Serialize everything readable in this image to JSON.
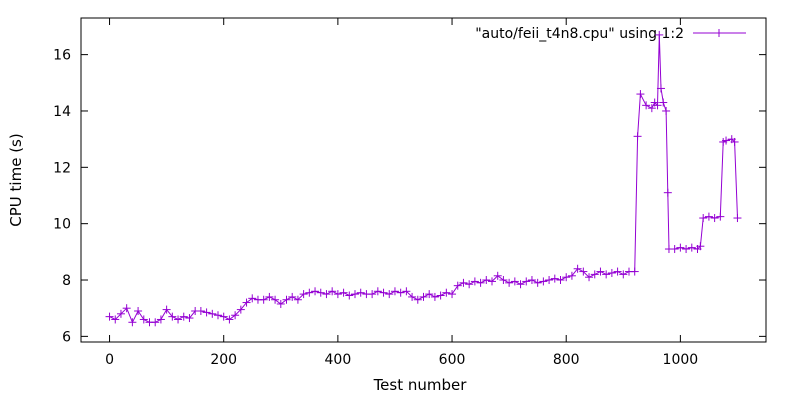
{
  "chart_data": {
    "type": "line",
    "title": "",
    "xlabel": "Test number",
    "ylabel": "CPU time (s)",
    "xlim": [
      -50,
      1150
    ],
    "ylim": [
      5.8,
      17.3
    ],
    "xticks": [
      0,
      200,
      400,
      600,
      800,
      1000
    ],
    "yticks": [
      6,
      8,
      10,
      12,
      14,
      16
    ],
    "grid": false,
    "legend_position": "top-right",
    "line_color": "#9400d3",
    "marker": "plus",
    "series": [
      {
        "name": "\"auto/feii_t4n8.cpu\" using 1:2",
        "points": [
          [
            0,
            6.7
          ],
          [
            10,
            6.6
          ],
          [
            20,
            6.8
          ],
          [
            30,
            7.0
          ],
          [
            40,
            6.5
          ],
          [
            50,
            6.9
          ],
          [
            60,
            6.6
          ],
          [
            70,
            6.5
          ],
          [
            80,
            6.5
          ],
          [
            90,
            6.6
          ],
          [
            100,
            6.95
          ],
          [
            110,
            6.7
          ],
          [
            120,
            6.6
          ],
          [
            130,
            6.7
          ],
          [
            140,
            6.65
          ],
          [
            150,
            6.9
          ],
          [
            160,
            6.9
          ],
          [
            170,
            6.85
          ],
          [
            180,
            6.8
          ],
          [
            190,
            6.75
          ],
          [
            200,
            6.7
          ],
          [
            210,
            6.6
          ],
          [
            220,
            6.75
          ],
          [
            230,
            6.95
          ],
          [
            240,
            7.2
          ],
          [
            250,
            7.35
          ],
          [
            260,
            7.3
          ],
          [
            270,
            7.3
          ],
          [
            280,
            7.4
          ],
          [
            290,
            7.3
          ],
          [
            300,
            7.15
          ],
          [
            310,
            7.3
          ],
          [
            320,
            7.4
          ],
          [
            330,
            7.3
          ],
          [
            340,
            7.5
          ],
          [
            350,
            7.55
          ],
          [
            360,
            7.6
          ],
          [
            370,
            7.55
          ],
          [
            380,
            7.5
          ],
          [
            390,
            7.6
          ],
          [
            400,
            7.5
          ],
          [
            410,
            7.55
          ],
          [
            420,
            7.45
          ],
          [
            430,
            7.5
          ],
          [
            440,
            7.55
          ],
          [
            450,
            7.5
          ],
          [
            460,
            7.5
          ],
          [
            470,
            7.6
          ],
          [
            480,
            7.55
          ],
          [
            490,
            7.5
          ],
          [
            500,
            7.6
          ],
          [
            510,
            7.55
          ],
          [
            520,
            7.6
          ],
          [
            530,
            7.4
          ],
          [
            540,
            7.3
          ],
          [
            550,
            7.4
          ],
          [
            560,
            7.5
          ],
          [
            570,
            7.4
          ],
          [
            580,
            7.45
          ],
          [
            590,
            7.55
          ],
          [
            600,
            7.5
          ],
          [
            610,
            7.8
          ],
          [
            620,
            7.9
          ],
          [
            630,
            7.85
          ],
          [
            640,
            7.95
          ],
          [
            650,
            7.9
          ],
          [
            660,
            8.0
          ],
          [
            670,
            7.95
          ],
          [
            680,
            8.15
          ],
          [
            690,
            8.0
          ],
          [
            700,
            7.9
          ],
          [
            710,
            7.95
          ],
          [
            720,
            7.85
          ],
          [
            730,
            7.95
          ],
          [
            740,
            8.0
          ],
          [
            750,
            7.9
          ],
          [
            760,
            7.95
          ],
          [
            770,
            8.0
          ],
          [
            780,
            8.05
          ],
          [
            790,
            8.0
          ],
          [
            800,
            8.1
          ],
          [
            810,
            8.15
          ],
          [
            820,
            8.4
          ],
          [
            830,
            8.3
          ],
          [
            840,
            8.1
          ],
          [
            850,
            8.2
          ],
          [
            860,
            8.3
          ],
          [
            870,
            8.2
          ],
          [
            880,
            8.25
          ],
          [
            890,
            8.3
          ],
          [
            900,
            8.2
          ],
          [
            910,
            8.3
          ],
          [
            920,
            8.3
          ],
          [
            925,
            13.1
          ],
          [
            930,
            14.6
          ],
          [
            940,
            14.2
          ],
          [
            950,
            14.1
          ],
          [
            955,
            14.3
          ],
          [
            960,
            14.2
          ],
          [
            963,
            16.7
          ],
          [
            966,
            14.8
          ],
          [
            970,
            14.3
          ],
          [
            975,
            14.0
          ],
          [
            978,
            11.1
          ],
          [
            980,
            9.1
          ],
          [
            990,
            9.1
          ],
          [
            1000,
            9.15
          ],
          [
            1010,
            9.1
          ],
          [
            1020,
            9.15
          ],
          [
            1030,
            9.1
          ],
          [
            1035,
            9.2
          ],
          [
            1040,
            10.2
          ],
          [
            1050,
            10.25
          ],
          [
            1060,
            10.2
          ],
          [
            1070,
            10.25
          ],
          [
            1075,
            12.9
          ],
          [
            1080,
            12.95
          ],
          [
            1090,
            13.0
          ],
          [
            1095,
            12.9
          ],
          [
            1100,
            10.2
          ]
        ]
      }
    ]
  }
}
